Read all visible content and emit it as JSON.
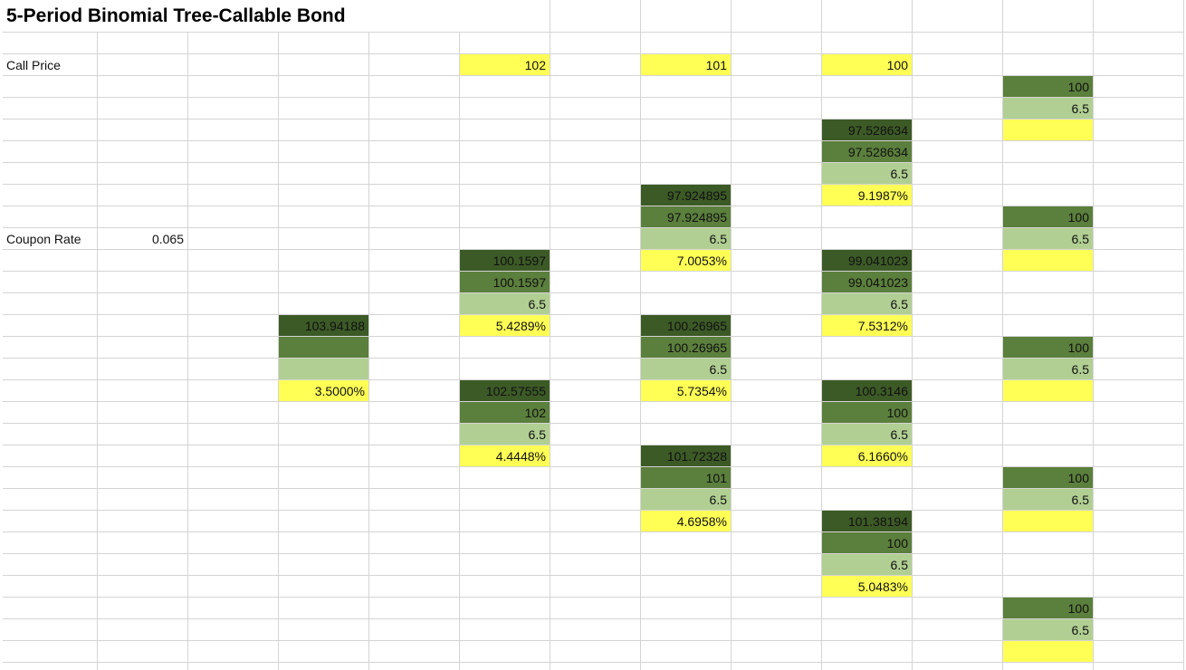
{
  "title": "5-Period Binomial Tree-Callable Bond",
  "call_price": {
    "label": "Call Price",
    "values": [
      "102",
      "101",
      "100"
    ]
  },
  "coupon_rate": {
    "label": "Coupon Rate",
    "value": "0.065"
  },
  "periods": [
    {
      "nodes": [
        {
          "value": "103.94188",
          "rate": "3.5000%"
        }
      ]
    },
    {
      "nodes": [
        {
          "value": "100.1597",
          "called_value": "100.1597",
          "coupon": "6.5",
          "rate": "5.4289%"
        },
        {
          "value": "102.57555",
          "called_value": "102",
          "coupon": "6.5",
          "rate": "4.4448%"
        }
      ]
    },
    {
      "nodes": [
        {
          "value": "97.924895",
          "called_value": "97.924895",
          "coupon": "6.5",
          "rate": "7.0053%"
        },
        {
          "value": "100.26965",
          "called_value": "100.26965",
          "coupon": "6.5",
          "rate": "5.7354%"
        },
        {
          "value": "101.72328",
          "called_value": "101",
          "coupon": "6.5",
          "rate": "4.6958%"
        }
      ]
    },
    {
      "nodes": [
        {
          "value": "97.528634",
          "called_value": "97.528634",
          "coupon": "6.5",
          "rate": "9.1987%"
        },
        {
          "value": "99.041023",
          "called_value": "99.041023",
          "coupon": "6.5",
          "rate": "7.5312%"
        },
        {
          "value": "100.3146",
          "called_value": "100",
          "coupon": "6.5",
          "rate": "6.1660%"
        },
        {
          "value": "101.38194",
          "called_value": "100",
          "coupon": "6.5",
          "rate": "5.0483%"
        }
      ]
    },
    {
      "nodes": [
        {
          "called_value": "100",
          "coupon": "6.5"
        },
        {
          "called_value": "100",
          "coupon": "6.5"
        },
        {
          "called_value": "100",
          "coupon": "6.5"
        },
        {
          "called_value": "100",
          "coupon": "6.5"
        },
        {
          "called_value": "100",
          "coupon": "6.5"
        }
      ]
    }
  ]
}
